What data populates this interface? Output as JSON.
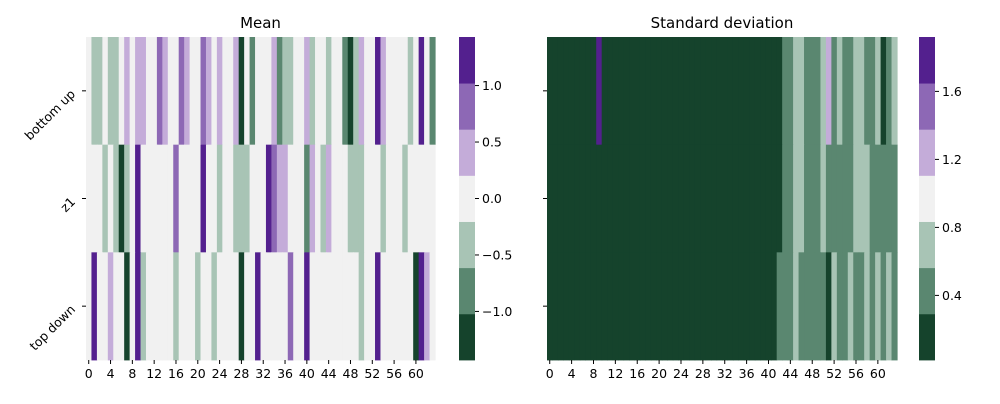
{
  "chart_data": [
    {
      "type": "heatmap",
      "title": "Mean",
      "xlabel": "",
      "ylabel": "",
      "rows": [
        "bottom up",
        "z1",
        "top down"
      ],
      "x_tick_labels": [
        "0",
        "4",
        "8",
        "12",
        "16",
        "20",
        "24",
        "28",
        "32",
        "36",
        "40",
        "44",
        "48",
        "52",
        "56",
        "60"
      ],
      "n_columns": 64,
      "colorbar": {
        "ticks": [
          "1.0",
          "0.5",
          "0.0",
          "−0.5",
          "−1.0"
        ],
        "tick_values": [
          1.0,
          0.5,
          0.0,
          -0.5,
          -1.0
        ],
        "range": [
          -1.43,
          1.43
        ],
        "levels": 7
      },
      "level_colors": [
        "#15432c",
        "#5a8770",
        "#a8c4b5",
        "#f1f1f1",
        "#c4acd9",
        "#8d68b5",
        "#53208e"
      ],
      "values": [
        [
          0,
          -1,
          -1,
          0,
          -1,
          -1,
          0,
          1,
          0,
          1,
          1,
          0,
          0,
          2,
          1,
          0,
          0,
          2,
          1,
          0,
          0,
          2,
          1,
          0,
          1,
          0,
          0,
          1,
          -3,
          0,
          -2,
          0,
          0,
          0,
          1,
          -2,
          -1,
          -1,
          0,
          0,
          1,
          -1,
          0,
          0,
          -1,
          0,
          0,
          -2,
          -3,
          -1,
          1,
          0,
          0,
          3,
          1,
          0,
          0,
          0,
          0,
          -1,
          0,
          3,
          0,
          -2
        ],
        [
          0,
          0,
          0,
          -1,
          0,
          -1,
          -3,
          -1,
          0,
          3,
          0,
          0,
          0,
          0,
          0,
          0,
          2,
          0,
          0,
          0,
          0,
          3,
          0,
          0,
          -1,
          0,
          0,
          -1,
          -1,
          -1,
          0,
          0,
          0,
          3,
          2,
          1,
          1,
          0,
          0,
          0,
          -2,
          1,
          0,
          -1,
          1,
          0,
          0,
          0,
          -1,
          -1,
          -1,
          0,
          0,
          0,
          -1,
          0,
          0,
          0,
          -1,
          0,
          0,
          0,
          0,
          0
        ],
        [
          0,
          3,
          0,
          0,
          1,
          0,
          0,
          -3,
          0,
          3,
          -1,
          0,
          0,
          0,
          0,
          0,
          -1,
          0,
          0,
          0,
          -1,
          0,
          0,
          -1,
          0,
          0,
          0,
          0,
          -3,
          0,
          0,
          3,
          0,
          0,
          0,
          0,
          0,
          2,
          0,
          0,
          3,
          0,
          0,
          0,
          0,
          0,
          0,
          0,
          0,
          0,
          -1,
          0,
          0,
          3,
          0,
          0,
          0,
          0,
          0,
          0,
          -3,
          3,
          1,
          0
        ]
      ]
    },
    {
      "type": "heatmap",
      "title": "Standard deviation",
      "xlabel": "",
      "ylabel": "",
      "rows": [
        "",
        "",
        ""
      ],
      "x_tick_labels": [
        "0",
        "4",
        "8",
        "12",
        "16",
        "20",
        "24",
        "28",
        "32",
        "36",
        "40",
        "44",
        "48",
        "52",
        "56",
        "60"
      ],
      "n_columns": 64,
      "colorbar": {
        "ticks": [
          "1.6",
          "1.2",
          "0.8",
          "0.4"
        ],
        "tick_values": [
          1.6,
          1.2,
          0.8,
          0.4
        ],
        "range": [
          0.02,
          1.92
        ],
        "levels": 7
      },
      "level_colors": [
        "#15432c",
        "#5a8770",
        "#a8c4b5",
        "#f1f1f1",
        "#c4acd9",
        "#8d68b5",
        "#53208e"
      ],
      "values": [
        [
          0,
          0,
          0,
          0,
          0,
          0,
          0,
          0,
          0,
          6,
          0,
          0,
          0,
          0,
          0,
          0,
          0,
          0,
          0,
          0,
          0,
          0,
          0,
          0,
          0,
          0,
          0,
          0,
          0,
          0,
          0,
          0,
          0,
          0,
          0,
          0,
          0,
          0,
          0,
          0,
          0,
          0,
          0,
          1,
          1,
          2,
          2,
          1,
          1,
          1,
          2,
          4,
          1,
          2,
          1,
          1,
          2,
          2,
          1,
          1,
          2,
          0,
          1,
          2
        ],
        [
          0,
          0,
          0,
          0,
          0,
          0,
          0,
          0,
          0,
          0,
          0,
          0,
          0,
          0,
          0,
          0,
          0,
          0,
          0,
          0,
          0,
          0,
          0,
          0,
          0,
          0,
          0,
          0,
          0,
          0,
          0,
          0,
          0,
          0,
          0,
          0,
          0,
          0,
          0,
          0,
          0,
          0,
          0,
          1,
          1,
          2,
          2,
          1,
          1,
          1,
          2,
          1,
          1,
          1,
          1,
          1,
          2,
          2,
          2,
          1,
          1,
          1,
          1,
          1
        ],
        [
          0,
          0,
          0,
          0,
          0,
          0,
          0,
          0,
          0,
          0,
          0,
          0,
          0,
          0,
          0,
          0,
          0,
          0,
          0,
          0,
          0,
          0,
          0,
          0,
          0,
          0,
          0,
          0,
          0,
          0,
          0,
          0,
          0,
          0,
          0,
          0,
          0,
          0,
          0,
          0,
          0,
          0,
          1,
          1,
          1,
          2,
          1,
          1,
          1,
          1,
          1,
          0,
          2,
          1,
          1,
          2,
          1,
          1,
          2,
          1,
          2,
          1,
          2,
          1
        ]
      ]
    }
  ]
}
